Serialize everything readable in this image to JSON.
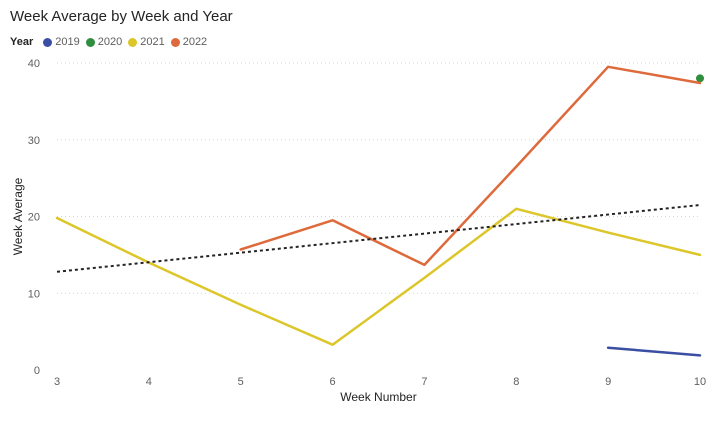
{
  "chart_data": {
    "type": "line",
    "title": "Week Average by Week and Year",
    "xlabel": "Week Number",
    "ylabel": "Week Average",
    "legend_title": "Year",
    "legend_position": "top-left",
    "x": [
      3,
      4,
      5,
      6,
      7,
      8,
      9,
      10
    ],
    "xlim": [
      3,
      10
    ],
    "ylim": [
      0,
      40
    ],
    "yticks": [
      0,
      10,
      20,
      30,
      40
    ],
    "grid": "horizontal-dotted",
    "series": [
      {
        "name": "2019",
        "color": "#3a4fa3",
        "points": [
          [
            9,
            2.9
          ],
          [
            10,
            1.9
          ]
        ]
      },
      {
        "name": "2020",
        "color": "#2f8f3e",
        "points": [
          [
            10,
            38.0
          ]
        ]
      },
      {
        "name": "2021",
        "color": "#dcc629",
        "points": [
          [
            3,
            19.8
          ],
          [
            4,
            14.0
          ],
          [
            5,
            8.5
          ],
          [
            6,
            3.3
          ],
          [
            7,
            12.0
          ],
          [
            8,
            21.0
          ],
          [
            9,
            17.9
          ],
          [
            10,
            15.0
          ]
        ]
      },
      {
        "name": "2022",
        "color": "#de6a3b",
        "points": [
          [
            5,
            15.7
          ],
          [
            6,
            19.5
          ],
          [
            7,
            13.7
          ],
          [
            8,
            26.5
          ],
          [
            9,
            39.5
          ],
          [
            10,
            37.4
          ]
        ]
      }
    ],
    "trend_line": {
      "style": "dashed",
      "color": "#252423",
      "points": [
        [
          3,
          12.8
        ],
        [
          10,
          21.5
        ]
      ]
    }
  }
}
